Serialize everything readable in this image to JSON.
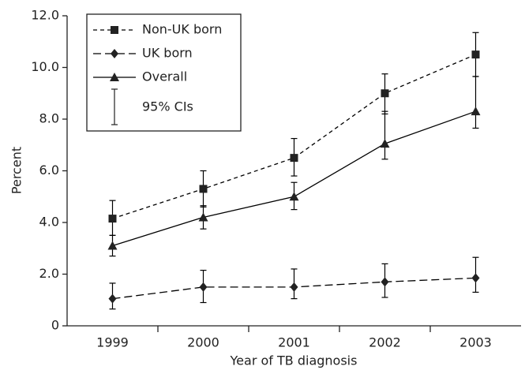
{
  "chart_data": {
    "type": "line",
    "x_label": "Year of TB diagnosis",
    "y_label": "Percent",
    "categories": [
      "1999",
      "2000",
      "2001",
      "2002",
      "2003"
    ],
    "series": [
      {
        "name": "Non-UK born",
        "color": "#000000",
        "dash": "dashed",
        "marker": "square",
        "values": [
          4.15,
          5.3,
          6.5,
          9.0,
          10.5
        ],
        "upper": [
          4.85,
          6.0,
          7.25,
          9.75,
          11.35
        ],
        "lower": [
          3.5,
          4.6,
          5.8,
          8.2,
          9.65
        ]
      },
      {
        "name": "UK born",
        "color": "#000000",
        "dash": "longdash",
        "marker": "diamond",
        "values": [
          1.05,
          1.5,
          1.5,
          1.7,
          1.85
        ],
        "upper": [
          1.65,
          2.15,
          2.2,
          2.4,
          2.65
        ],
        "lower": [
          0.65,
          0.9,
          1.05,
          1.1,
          1.3
        ]
      },
      {
        "name": "Overall",
        "color": "#000000",
        "dash": "solid",
        "marker": "triangle",
        "values": [
          3.1,
          4.2,
          5.0,
          7.05,
          8.3
        ],
        "upper": [
          3.5,
          4.65,
          5.55,
          8.3,
          9.65
        ],
        "lower": [
          2.7,
          3.75,
          4.5,
          6.45,
          7.65
        ]
      }
    ],
    "error_bar_label": "95% CIs",
    "ylim": [
      0,
      12
    ],
    "yticks": [
      0,
      {
        "value": 2,
        "label": "2.0"
      },
      {
        "value": 4,
        "label": "4.0"
      },
      {
        "value": 6,
        "label": "6.0"
      },
      {
        "value": 8,
        "label": "8.0"
      },
      {
        "value": 10,
        "label": "10.0"
      },
      {
        "value": 12,
        "label": "12.0"
      }
    ],
    "legend": "upper left",
    "grid": false
  }
}
